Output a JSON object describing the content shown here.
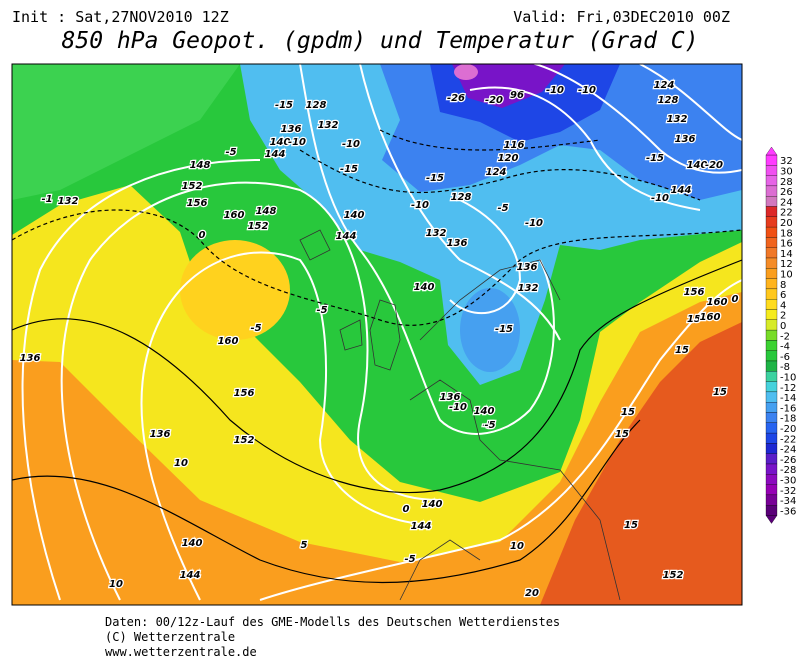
{
  "header": {
    "init": "Init : Sat,27NOV2010 12Z",
    "valid": "Valid: Fri,03DEC2010 00Z",
    "title": "850 hPa Geopot. (gpdm) und Temperatur (Grad C)"
  },
  "colorbar": {
    "labels": [
      32,
      30,
      28,
      26,
      24,
      22,
      20,
      18,
      16,
      14,
      12,
      10,
      8,
      6,
      4,
      2,
      0,
      -2,
      -4,
      -6,
      -8,
      -10,
      -12,
      -14,
      -16,
      -18,
      -20,
      -22,
      -24,
      -26,
      -28,
      -30,
      -32,
      -34,
      -36
    ],
    "colors": [
      "#ff3cff",
      "#f050f0",
      "#e664e6",
      "#dc6ed2",
      "#d278be",
      "#dc2828",
      "#e63c1e",
      "#f05014",
      "#f0641e",
      "#f07828",
      "#f58c28",
      "#fa9e1e",
      "#ffb41e",
      "#ffc81e",
      "#ffdc1e",
      "#f5eb1e",
      "#d7eb28",
      "#78dc28",
      "#3cd232",
      "#28c83c",
      "#1eb446",
      "#3cd2a0",
      "#46d2dc",
      "#50bef0",
      "#46a0f0",
      "#3c82f0",
      "#2864f0",
      "#1e46e6",
      "#1e28d2",
      "#5a1ec8",
      "#7814c8",
      "#8c0abe",
      "#9600b4",
      "#780096",
      "#5a0078"
    ]
  },
  "map_labels": [
    -15,
    128,
    132,
    136,
    140,
    -10,
    144,
    -10,
    -15,
    -5,
    148,
    152,
    156,
    -1,
    132,
    160,
    148,
    152,
    140,
    144,
    0,
    -10,
    -15,
    128,
    -5,
    -10,
    132,
    136,
    -26,
    -20,
    96,
    -10,
    -10,
    124,
    128,
    132,
    136,
    -15,
    140,
    -20,
    144,
    -10,
    124,
    120,
    116,
    136,
    132,
    -15,
    140,
    -5,
    -5,
    160,
    156,
    152,
    136,
    -5,
    0,
    136,
    10,
    140,
    144,
    10,
    5,
    140,
    144,
    -5,
    10,
    15,
    20,
    152,
    136,
    -10,
    140,
    -5,
    15,
    15,
    15,
    15,
    156,
    160,
    160,
    0,
    15
  ],
  "footer": {
    "line1": "Daten: 00/12z-Lauf des GME-Modells des Deutschen Wetterdienstes",
    "line2": "(C) Wetterzentrale",
    "line3": "www.wetterzentrale.de"
  }
}
